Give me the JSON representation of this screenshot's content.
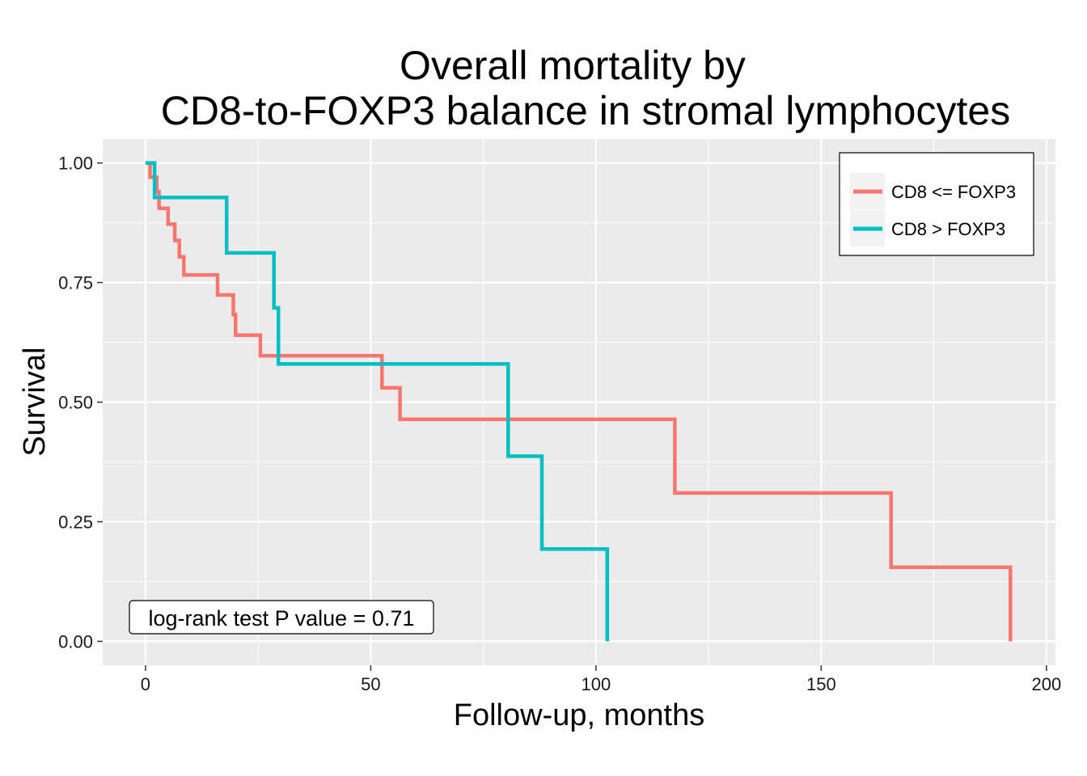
{
  "chart_data": {
    "type": "line",
    "title_lines": [
      "Overall mortality by",
      "CD8-to-FOXP3 balance in stromal lymphocytes"
    ],
    "xlabel": "Follow-up, months",
    "ylabel": "Survival",
    "xlim": [
      -9.5,
      202
    ],
    "ylim": [
      -0.05,
      1.05
    ],
    "x_ticks": [
      0,
      50,
      100,
      150,
      200
    ],
    "x_tick_labels": [
      "0",
      "50",
      "100",
      "150",
      "200"
    ],
    "y_ticks": [
      0,
      0.25,
      0.5,
      0.75,
      1.0
    ],
    "y_tick_labels": [
      "0.00",
      "0.25",
      "0.50",
      "0.75",
      "1.00"
    ],
    "grid": true,
    "legend_position": "top-right",
    "series": [
      {
        "name": "CD8 <= FOXP3",
        "color": "#F8766D",
        "step": true,
        "x": [
          0,
          1,
          1.5,
          2.5,
          3,
          5,
          6.5,
          7.5,
          8.5,
          11,
          16,
          19.5,
          20,
          25.5,
          52.5,
          56.5,
          117.5,
          165.5,
          192
        ],
        "y": [
          1.0,
          0.97,
          0.97,
          0.94,
          0.905,
          0.872,
          0.838,
          0.804,
          0.766,
          0.766,
          0.724,
          0.683,
          0.64,
          0.597,
          0.53,
          0.464,
          0.31,
          0.155,
          0.0
        ]
      },
      {
        "name": "CD8 > FOXP3",
        "color": "#00BFC4",
        "step": true,
        "x": [
          0,
          2,
          18,
          28.5,
          29.5,
          80.5,
          88,
          102.5
        ],
        "y": [
          1.0,
          0.928,
          0.812,
          0.697,
          0.58,
          0.387,
          0.193,
          0.0
        ]
      }
    ],
    "annotation": "log-rank test P value = 0.71"
  }
}
